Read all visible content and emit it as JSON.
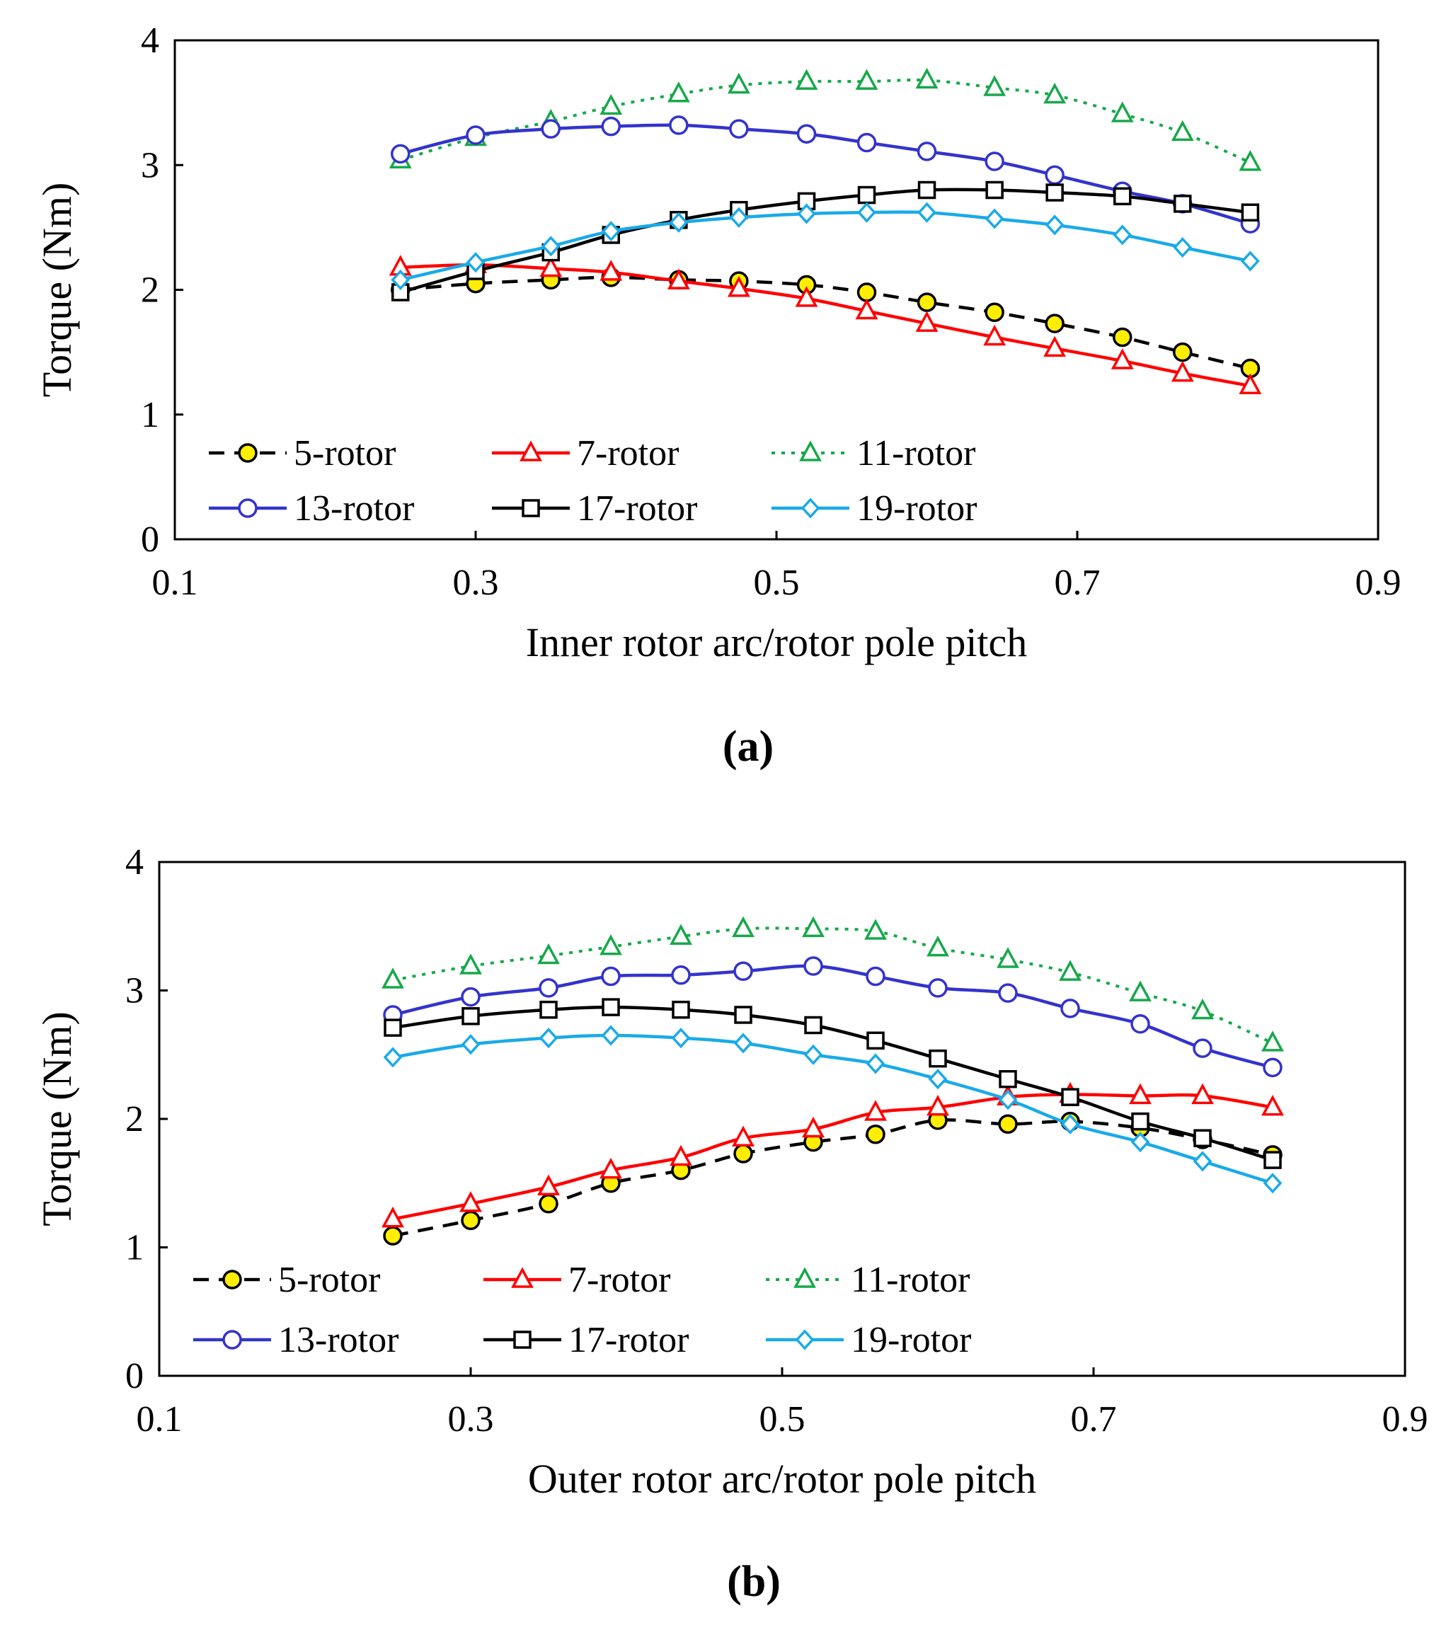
{
  "chart_data": [
    {
      "type": "line",
      "panel_label": "(a)",
      "xlabel": "Inner rotor arc/rotor pole pitch",
      "ylabel": "Torque (Nm)",
      "xlim": [
        0.1,
        0.9
      ],
      "ylim": [
        0,
        4
      ],
      "xticks": [
        0.1,
        0.3,
        0.5,
        0.7,
        0.9
      ],
      "xtick_labels": [
        "0.1",
        "0.3",
        "0.5",
        "0.7",
        "0.9"
      ],
      "yticks": [
        0,
        1,
        2,
        3,
        4
      ],
      "ytick_labels": [
        "0",
        "1",
        "2",
        "3",
        "4"
      ],
      "grid": false,
      "legend_position": "bottom-left, two rows",
      "x": [
        0.25,
        0.3,
        0.35,
        0.39,
        0.435,
        0.475,
        0.52,
        0.56,
        0.6,
        0.645,
        0.685,
        0.73,
        0.77,
        0.815
      ],
      "series": [
        {
          "name": "5-rotor",
          "color": "#000000",
          "fill": "#ffee00",
          "dash": "dashed",
          "marker": "circle",
          "values": [
            2.0,
            2.05,
            2.08,
            2.1,
            2.08,
            2.07,
            2.04,
            1.98,
            1.9,
            1.82,
            1.73,
            1.62,
            1.5,
            1.37
          ]
        },
        {
          "name": "7-rotor",
          "color": "#ff0000",
          "fill": "#ffffff",
          "dash": "solid",
          "marker": "triangle",
          "values": [
            2.18,
            2.2,
            2.17,
            2.14,
            2.07,
            2.01,
            1.93,
            1.83,
            1.73,
            1.62,
            1.53,
            1.43,
            1.33,
            1.23
          ]
        },
        {
          "name": "11-rotor",
          "color": "#17a84a",
          "fill": "#ffffff",
          "dash": "dotted",
          "marker": "triangle",
          "values": [
            3.04,
            3.22,
            3.35,
            3.47,
            3.57,
            3.64,
            3.67,
            3.67,
            3.68,
            3.62,
            3.56,
            3.41,
            3.26,
            3.02
          ]
        },
        {
          "name": "13-rotor",
          "color": "#3333cc",
          "fill": "#ffffff",
          "dash": "solid",
          "marker": "circle",
          "values": [
            3.09,
            3.24,
            3.29,
            3.31,
            3.32,
            3.29,
            3.25,
            3.18,
            3.11,
            3.03,
            2.92,
            2.79,
            2.69,
            2.53
          ]
        },
        {
          "name": "17-rotor",
          "color": "#000000",
          "fill": "#ffffff",
          "dash": "solid",
          "marker": "square",
          "values": [
            1.98,
            2.15,
            2.3,
            2.44,
            2.56,
            2.64,
            2.71,
            2.76,
            2.8,
            2.8,
            2.78,
            2.75,
            2.69,
            2.62
          ]
        },
        {
          "name": "19-rotor",
          "color": "#1aaae8",
          "fill": "#ffffff",
          "dash": "solid",
          "marker": "diamond",
          "values": [
            2.08,
            2.22,
            2.35,
            2.47,
            2.54,
            2.58,
            2.61,
            2.62,
            2.62,
            2.57,
            2.52,
            2.44,
            2.34,
            2.23
          ]
        }
      ]
    },
    {
      "type": "line",
      "panel_label": "(b)",
      "xlabel": "Outer rotor arc/rotor pole pitch",
      "ylabel": "Torque (Nm)",
      "xlim": [
        0.1,
        0.9
      ],
      "ylim": [
        0,
        4
      ],
      "xticks": [
        0.1,
        0.3,
        0.5,
        0.7,
        0.9
      ],
      "xtick_labels": [
        "0.1",
        "0.3",
        "0.5",
        "0.7",
        "0.9"
      ],
      "yticks": [
        0,
        1,
        2,
        3,
        4
      ],
      "ytick_labels": [
        "0",
        "1",
        "2",
        "3",
        "4"
      ],
      "grid": false,
      "legend_position": "bottom-left, two rows",
      "x": [
        0.25,
        0.3,
        0.35,
        0.39,
        0.435,
        0.475,
        0.52,
        0.56,
        0.6,
        0.645,
        0.685,
        0.73,
        0.77,
        0.815
      ],
      "series": [
        {
          "name": "5-rotor",
          "color": "#000000",
          "fill": "#ffee00",
          "dash": "dashed",
          "marker": "circle",
          "values": [
            1.09,
            1.21,
            1.34,
            1.5,
            1.6,
            1.73,
            1.82,
            1.88,
            1.99,
            1.96,
            1.98,
            1.93,
            1.84,
            1.72
          ]
        },
        {
          "name": "7-rotor",
          "color": "#ff0000",
          "fill": "#ffffff",
          "dash": "solid",
          "marker": "triangle",
          "values": [
            1.22,
            1.34,
            1.47,
            1.6,
            1.7,
            1.85,
            1.92,
            2.05,
            2.09,
            2.17,
            2.19,
            2.18,
            2.18,
            2.09
          ]
        },
        {
          "name": "11-rotor",
          "color": "#17a84a",
          "fill": "#ffffff",
          "dash": "dotted",
          "marker": "triangle",
          "values": [
            3.08,
            3.19,
            3.27,
            3.34,
            3.42,
            3.48,
            3.48,
            3.46,
            3.33,
            3.24,
            3.14,
            2.98,
            2.84,
            2.59
          ]
        },
        {
          "name": "13-rotor",
          "color": "#3333cc",
          "fill": "#ffffff",
          "dash": "solid",
          "marker": "circle",
          "values": [
            2.81,
            2.95,
            3.02,
            3.11,
            3.12,
            3.15,
            3.19,
            3.11,
            3.02,
            2.98,
            2.86,
            2.74,
            2.55,
            2.4
          ]
        },
        {
          "name": "17-rotor",
          "color": "#000000",
          "fill": "#ffffff",
          "dash": "solid",
          "marker": "square",
          "values": [
            2.71,
            2.8,
            2.85,
            2.87,
            2.85,
            2.81,
            2.73,
            2.61,
            2.47,
            2.31,
            2.17,
            1.98,
            1.85,
            1.68
          ]
        },
        {
          "name": "19-rotor",
          "color": "#1aaae8",
          "fill": "#ffffff",
          "dash": "solid",
          "marker": "diamond",
          "values": [
            2.48,
            2.58,
            2.63,
            2.65,
            2.63,
            2.59,
            2.5,
            2.43,
            2.31,
            2.15,
            1.96,
            1.82,
            1.67,
            1.5
          ]
        }
      ]
    }
  ]
}
